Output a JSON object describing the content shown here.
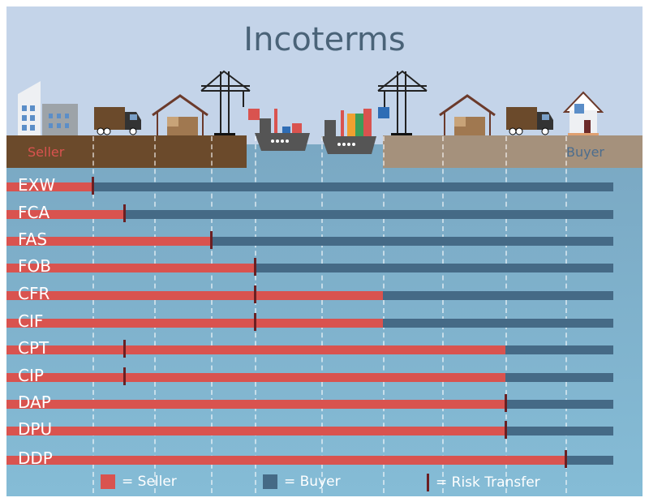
{
  "title": "Incoterms",
  "land": {
    "seller_label": "Seller",
    "buyer_label": "Buyer"
  },
  "colors": {
    "seller": "#d9534f",
    "buyer": "#456a86",
    "risk": "#6b1f22"
  },
  "stages": [
    "seller-premises",
    "first-carrier",
    "alongside-ship",
    "on-board-origin",
    "destination-port",
    "destination-place",
    "buyer-door"
  ],
  "terms": [
    {
      "name": "EXW",
      "seller_until": "seller-premises",
      "risk_at": "seller-premises"
    },
    {
      "name": "FCA",
      "seller_until": "first-carrier",
      "risk_at": "first-carrier"
    },
    {
      "name": "FAS",
      "seller_until": "alongside-ship",
      "risk_at": "alongside-ship"
    },
    {
      "name": "FOB",
      "seller_until": "on-board-origin",
      "risk_at": "on-board-origin"
    },
    {
      "name": "CFR",
      "seller_until": "destination-port",
      "risk_at": "on-board-origin"
    },
    {
      "name": "CIF",
      "seller_until": "destination-port",
      "risk_at": "on-board-origin"
    },
    {
      "name": "CPT",
      "seller_until": "destination-place",
      "risk_at": "first-carrier"
    },
    {
      "name": "CIP",
      "seller_until": "destination-place",
      "risk_at": "first-carrier"
    },
    {
      "name": "DAP",
      "seller_until": "destination-place",
      "risk_at": "destination-place"
    },
    {
      "name": "DPU",
      "seller_until": "destination-place",
      "risk_at": "destination-place"
    },
    {
      "name": "DDP",
      "seller_until": "buyer-door",
      "risk_at": "buyer-door"
    }
  ],
  "legend": {
    "seller": "= Seller",
    "buyer": "= Buyer",
    "risk": "= Risk Transfer"
  }
}
